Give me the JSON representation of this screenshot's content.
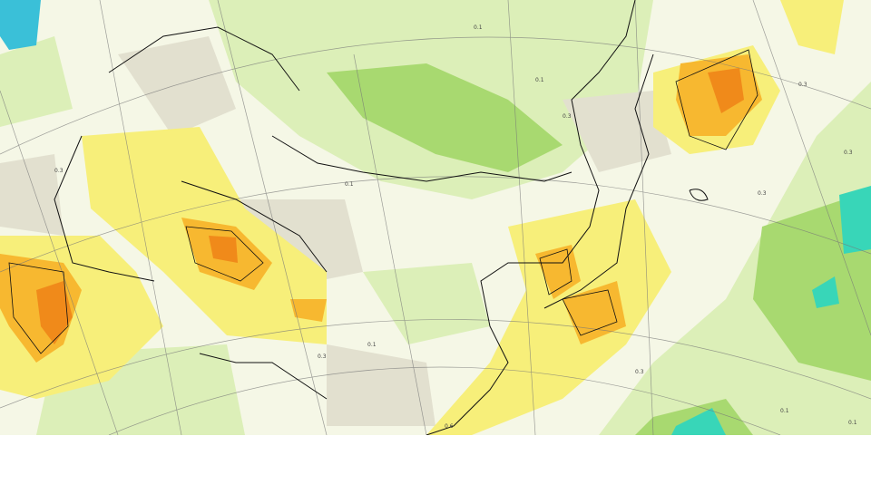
{
  "map": {
    "contour_labels": [
      "0.1",
      "0.3",
      "0.1",
      "0.3",
      "0.1",
      "0.3",
      "0.1",
      "0.3",
      "0.6",
      "0.1",
      "0.3",
      "0.1",
      "0.3",
      "0.3"
    ]
  }
}
